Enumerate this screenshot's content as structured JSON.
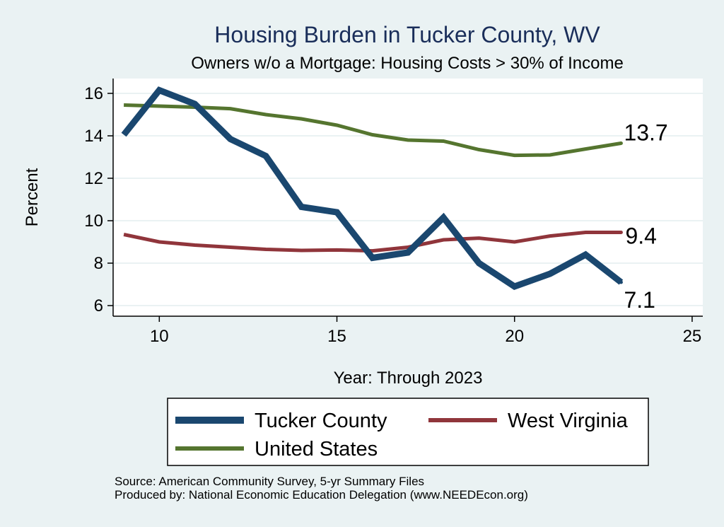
{
  "chart_data": {
    "type": "line",
    "title": "Housing Burden in Tucker County, WV",
    "subtitle": "Owners w/o a Mortgage: Housing Costs > 30% of Income",
    "xlabel": "Year: Through 2023",
    "ylabel": "Percent",
    "xlim": [
      8.7,
      25.3
    ],
    "ylim": [
      5.5,
      16.7
    ],
    "xticks": [
      10,
      15,
      20,
      25
    ],
    "yticks": [
      6,
      8,
      10,
      12,
      14,
      16
    ],
    "grid": true,
    "legend_position": "bottom",
    "x": [
      9,
      10,
      11,
      12,
      13,
      14,
      15,
      16,
      17,
      18,
      19,
      20,
      21,
      22,
      23
    ],
    "series": [
      {
        "name": "Tucker County",
        "color": "#1a476f",
        "values": [
          14.05,
          16.15,
          15.5,
          13.85,
          13.05,
          10.65,
          10.4,
          8.25,
          8.5,
          10.15,
          8.0,
          6.9,
          7.5,
          8.4,
          7.1
        ],
        "end_label": "7.1"
      },
      {
        "name": "West Virginia",
        "color": "#90353b",
        "values": [
          9.35,
          9.0,
          8.85,
          8.75,
          8.65,
          8.6,
          8.62,
          8.58,
          8.75,
          9.1,
          9.18,
          9.0,
          9.28,
          9.45,
          9.45
        ],
        "end_label": "9.4"
      },
      {
        "name": "United States",
        "color": "#55752f",
        "values": [
          15.45,
          15.4,
          15.35,
          15.28,
          15.0,
          14.8,
          14.5,
          14.05,
          13.8,
          13.75,
          13.35,
          13.08,
          13.1,
          13.38,
          13.65
        ],
        "end_label": "13.7"
      }
    ],
    "notes": [
      "Source: American Community Survey, 5-yr Summary Files",
      "Produced by: National Economic Education Delegation (www.NEEDEcon.org)"
    ]
  }
}
